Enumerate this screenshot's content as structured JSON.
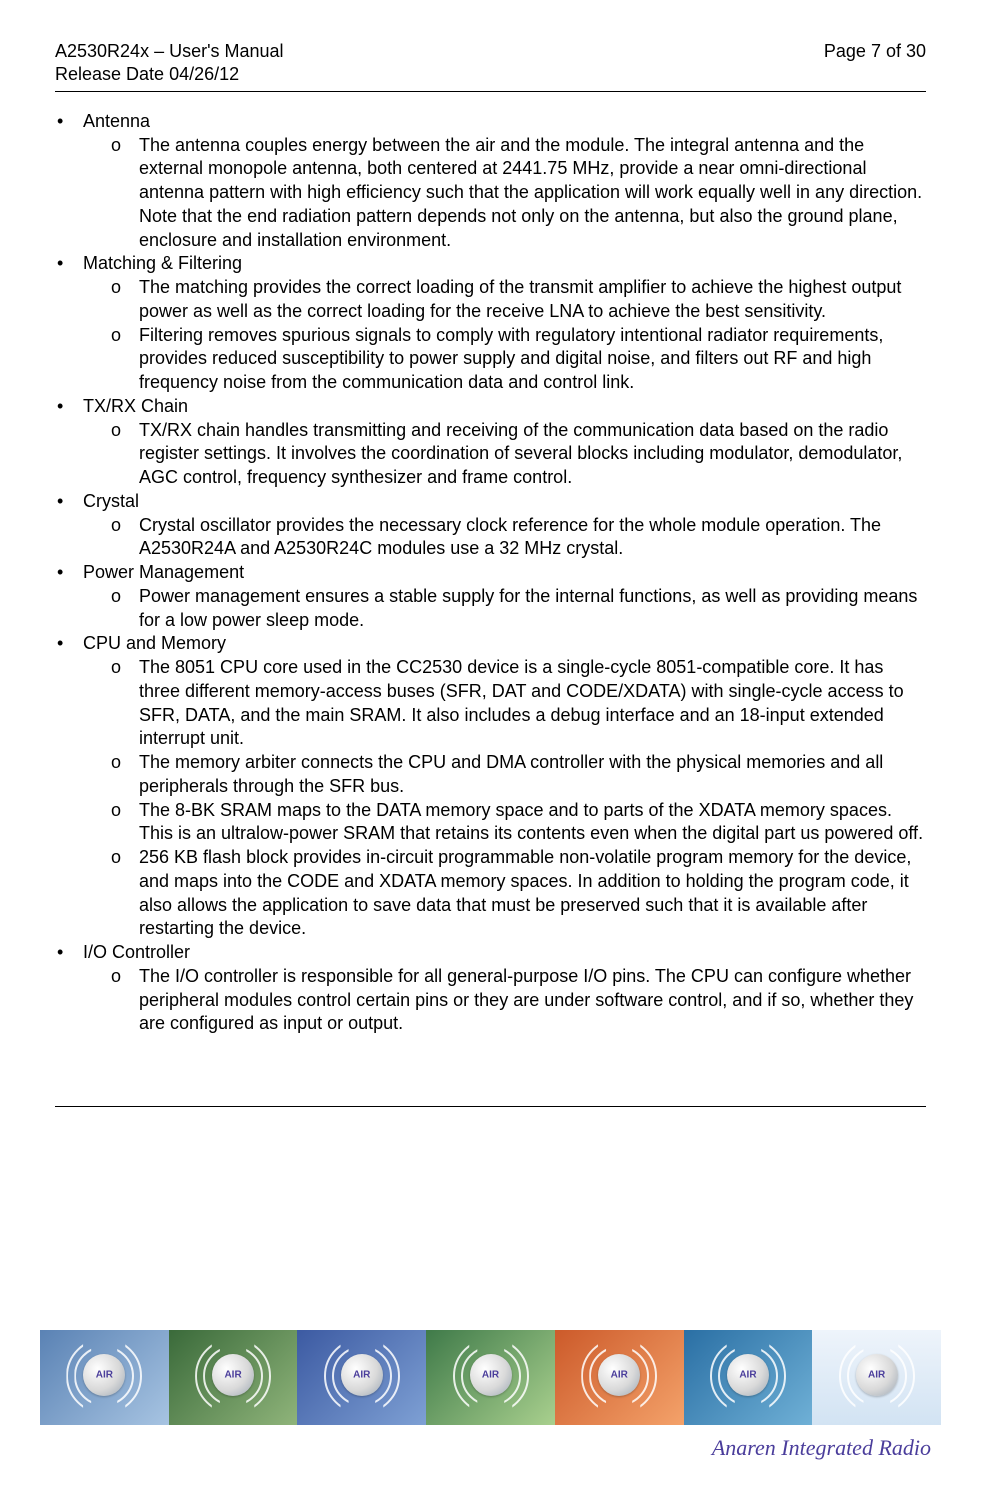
{
  "header": {
    "doc_title": "A2530R24x – User's Manual",
    "release": "Release Date 04/26/12",
    "page": "Page 7 of 30"
  },
  "sections": [
    {
      "title": "Antenna",
      "items": [
        "The antenna couples energy between the air and the module. The integral antenna and the external monopole antenna, both centered at 2441.75 MHz, provide a near omni-directional antenna pattern with high efficiency such that the application will work equally well in any direction. Note that the end radiation pattern depends not only on the antenna, but also the ground plane, enclosure and installation environment."
      ]
    },
    {
      "title": "Matching & Filtering",
      "items": [
        "The matching provides the correct loading of the transmit amplifier to achieve the highest output power as well as the correct loading for the receive LNA to achieve the best sensitivity.",
        "Filtering removes spurious signals to comply with regulatory intentional radiator requirements, provides reduced susceptibility to power supply and digital noise, and filters out RF and high frequency noise from the communication data and control link."
      ]
    },
    {
      "title": "TX/RX Chain",
      "items": [
        "TX/RX chain handles transmitting and receiving of the communication data based on the radio register settings. It involves the coordination of several blocks including modulator, demodulator, AGC control, frequency synthesizer and frame control."
      ]
    },
    {
      "title": "Crystal",
      "items": [
        "Crystal oscillator provides the necessary clock reference for the whole module operation. The A2530R24A and A2530R24C modules use a 32 MHz crystal."
      ]
    },
    {
      "title": "Power Management",
      "items": [
        "Power management ensures a stable supply for the internal functions, as well as providing means for a low power sleep mode."
      ]
    },
    {
      "title": "CPU and Memory",
      "items": [
        "The 8051 CPU core used in the CC2530 device is a single-cycle 8051-compatible core. It has three different memory-access buses (SFR, DAT and CODE/XDATA) with single-cycle access to SFR, DATA, and the main SRAM. It also includes a debug interface and an 18-input extended interrupt unit.",
        "The memory arbiter connects the CPU and DMA controller with the physical memories and all peripherals through the SFR bus.",
        "The 8-BK SRAM maps to the DATA memory space and to parts of the XDATA memory spaces. This is an ultralow-power SRAM that retains its contents even when the digital part us powered off.",
        "256 KB flash block provides in-circuit programmable non-volatile program memory for the device, and maps into the CODE and XDATA memory spaces. In addition to holding the program code, it also allows the application to save data that must be preserved such that it is available after restarting the device."
      ]
    },
    {
      "title": "I/O Controller",
      "items": [
        "The I/O controller is responsible for all general-purpose I/O pins. The CPU can configure whether peripheral modules control certain pins or they are under software control, and if so, whether they are configured as input or output."
      ]
    }
  ],
  "footer": {
    "air_label": "AIR",
    "brand": "Anaren Integrated Radio"
  }
}
